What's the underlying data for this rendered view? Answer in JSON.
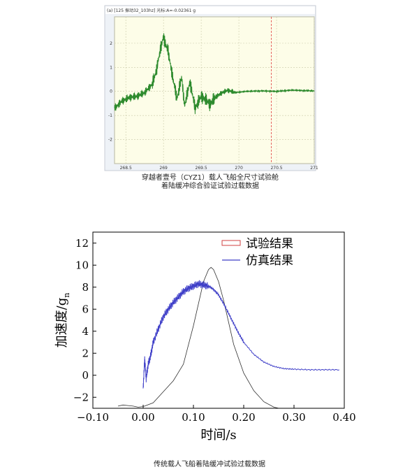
{
  "chart_data": [
    {
      "type": "line",
      "panel_header": "(a) [125 振动32_103hz]  光标:A=-0.02361 g",
      "caption_line1": "穿越者壹号（CYZ1）载人飞船全尺寸试验舱",
      "caption_line2": "着陆缓冲综合验证试验过载数据",
      "xlim": [
        268.35,
        271.0
      ],
      "ylim": [
        -3,
        3.1
      ],
      "xticks": [
        "268.5",
        "269",
        "269.5",
        "270",
        "270.5",
        "271"
      ],
      "xtick_values": [
        268.5,
        269.0,
        269.5,
        270.0,
        270.5,
        271.0
      ],
      "yticks": [
        "2",
        "1",
        "0",
        "-1",
        "-2"
      ],
      "ytick_values": [
        2,
        1,
        0,
        -1,
        -2
      ],
      "cursor_x": 270.43,
      "grid": true,
      "colors": {
        "plot_bg": "#fdfde8",
        "line": "#2e8b2e",
        "grid": "#c9c9a8",
        "cursor": "#e04040",
        "frame_bg": "#eef2f7"
      },
      "series": [
        {
          "x": [
            268.35,
            268.45,
            268.55,
            268.65,
            268.75,
            268.85,
            268.9,
            268.95,
            269.0,
            269.02,
            269.06,
            269.12,
            269.18,
            269.24,
            269.28,
            269.35,
            269.42,
            269.5,
            269.58,
            269.62,
            269.67,
            269.75,
            269.85,
            269.95,
            270.1,
            270.3,
            270.5,
            270.7,
            271.0
          ],
          "y": [
            -0.7,
            -0.4,
            -0.25,
            -0.2,
            -0.05,
            0.3,
            0.8,
            1.6,
            2.3,
            2.0,
            1.7,
            0.6,
            -0.3,
            0.6,
            -0.6,
            0.4,
            -0.7,
            -0.2,
            -0.4,
            -0.55,
            -0.3,
            -0.1,
            0.05,
            -0.05,
            0.0,
            0.02,
            0.0,
            0.05,
            0.02
          ]
        }
      ]
    },
    {
      "type": "line",
      "xlabel": "时间/s",
      "ylabel_main": "加速度/g",
      "ylabel_sub": "n",
      "xlim": [
        -0.1,
        0.4
      ],
      "ylim": [
        -3,
        13
      ],
      "xticks": [
        "−0.10",
        "0.00",
        "0.10",
        "0.20",
        "0.30",
        "0.40"
      ],
      "xtick_values": [
        -0.1,
        0.0,
        0.1,
        0.2,
        0.3,
        0.4
      ],
      "yticks": [
        "12",
        "10",
        "8",
        "6",
        "4",
        "2",
        "0",
        "−2"
      ],
      "ytick_values": [
        12,
        10,
        8,
        6,
        4,
        2,
        0,
        -2
      ],
      "legend_position": "top-right",
      "caption": "传统载人飞船着陆缓冲试验过载数据",
      "series": [
        {
          "name": "试验结果",
          "color": "#303030",
          "x": [
            -0.05,
            -0.04,
            -0.03,
            -0.02,
            -0.01,
            0.0,
            0.02,
            0.04,
            0.06,
            0.08,
            0.1,
            0.11,
            0.12,
            0.13,
            0.135,
            0.14,
            0.15,
            0.16,
            0.17,
            0.18,
            0.2,
            0.22,
            0.24,
            0.26,
            0.27
          ],
          "y": [
            -2.8,
            -2.7,
            -2.75,
            -2.8,
            -2.9,
            -2.85,
            -2.5,
            -1.5,
            -0.5,
            1.0,
            4.5,
            6.5,
            8.5,
            9.6,
            9.8,
            9.6,
            8.5,
            6.8,
            4.8,
            2.8,
            0.2,
            -1.4,
            -2.4,
            -2.9,
            -3.0
          ]
        },
        {
          "name": "仿真结果",
          "color": "#3f3fc8",
          "x": [
            0.0,
            0.003,
            0.006,
            0.01,
            0.015,
            0.02,
            0.03,
            0.04,
            0.05,
            0.06,
            0.07,
            0.08,
            0.09,
            0.1,
            0.11,
            0.12,
            0.13,
            0.14,
            0.15,
            0.16,
            0.17,
            0.18,
            0.19,
            0.2,
            0.22,
            0.24,
            0.26,
            0.28,
            0.3,
            0.33,
            0.36,
            0.39
          ],
          "y": [
            -1.2,
            1.5,
            -0.3,
            1.0,
            1.8,
            3.0,
            4.2,
            5.3,
            6.0,
            6.6,
            7.1,
            7.6,
            7.9,
            8.1,
            8.3,
            8.2,
            8.1,
            7.8,
            7.3,
            6.5,
            5.6,
            4.7,
            3.8,
            3.0,
            1.9,
            1.2,
            0.8,
            0.6,
            0.55,
            0.5,
            0.5,
            0.5
          ]
        }
      ]
    }
  ]
}
